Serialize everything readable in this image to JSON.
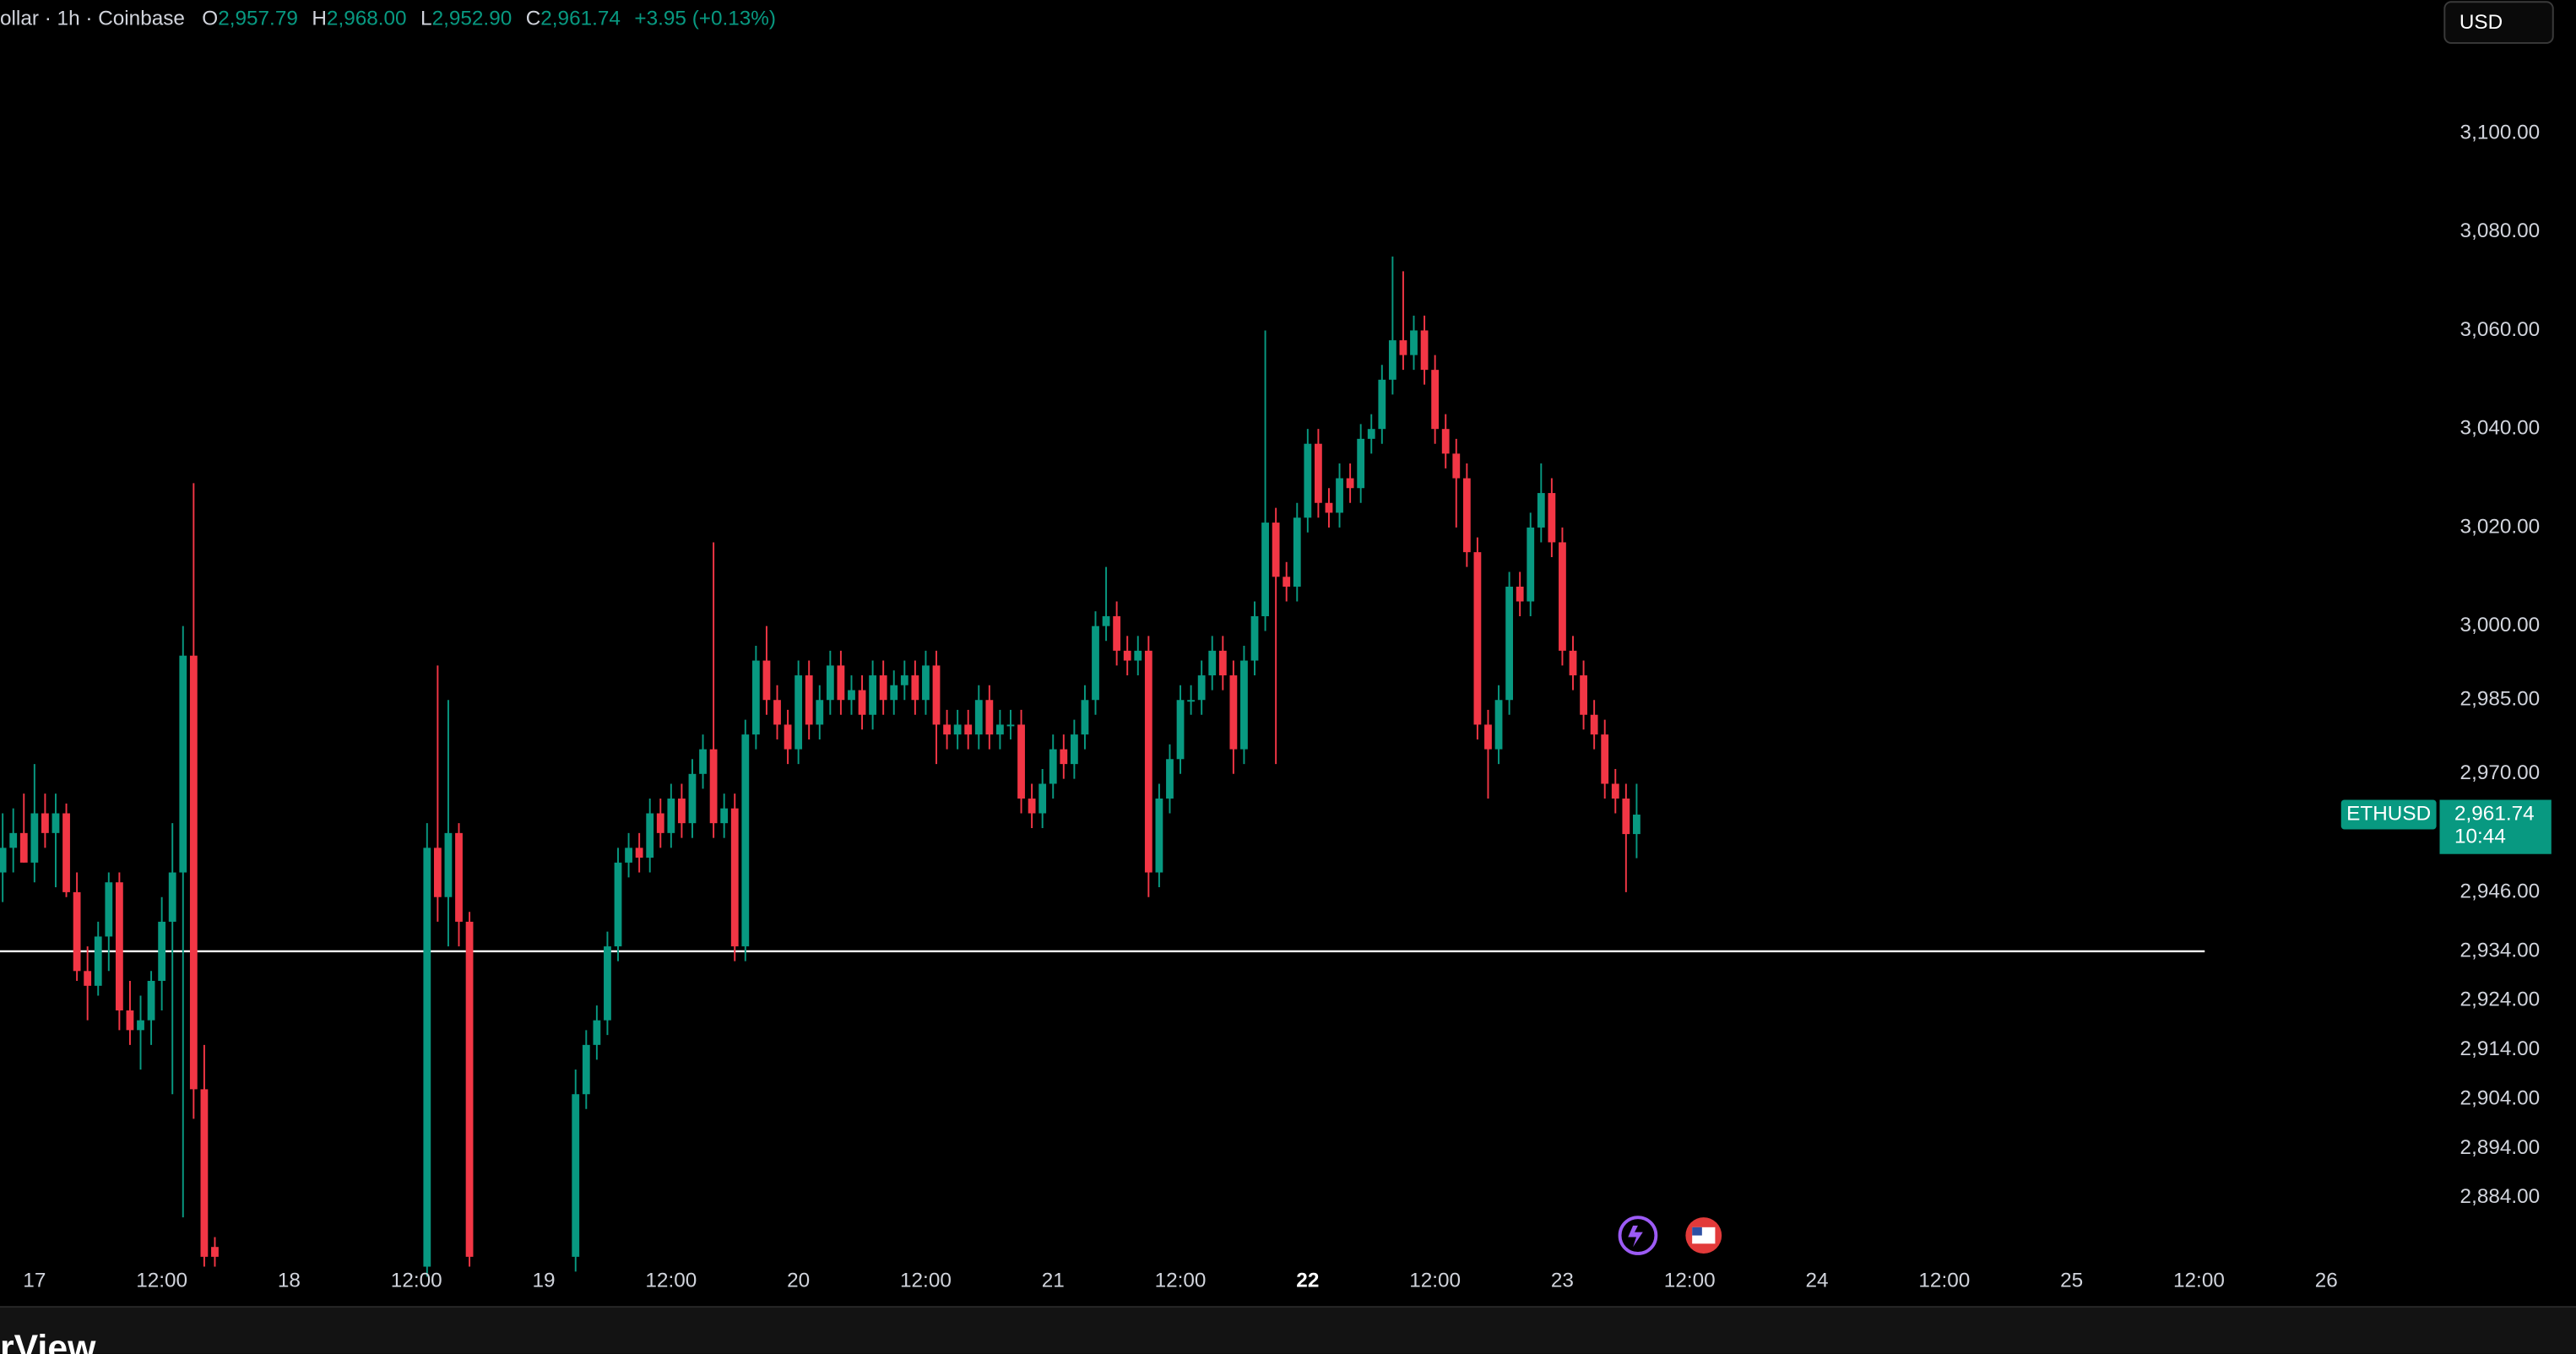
{
  "header": {
    "symbol": "ollar · 1h · Coinbase",
    "o_label": "O",
    "open": "2,957.79",
    "h_label": "H",
    "high": "2,968.00",
    "l_label": "L",
    "low": "2,952.90",
    "c_label": "C",
    "close": "2,961.74",
    "change": "+3.95 (+0.13%)"
  },
  "currency_button": "USD",
  "price_label": {
    "symbol": "ETHUSD",
    "price": "2,961.74",
    "countdown": "10:44"
  },
  "brand": "rView",
  "chart_data": {
    "type": "candlestick",
    "up_color": "#089981",
    "down_color": "#f23645",
    "line_color": "#ffffff",
    "xlim": [
      -3.25,
      225.6
    ],
    "ylim": [
      2872,
      3127
    ],
    "grid": false,
    "horizontal_line": 2934,
    "xticks": [
      {
        "value": 0,
        "label": "17"
      },
      {
        "value": 12,
        "label": "12:00"
      },
      {
        "value": 24,
        "label": "18"
      },
      {
        "value": 36,
        "label": "12:00"
      },
      {
        "value": 48,
        "label": "19"
      },
      {
        "value": 60,
        "label": "12:00"
      },
      {
        "value": 72,
        "label": "20"
      },
      {
        "value": 84,
        "label": "12:00"
      },
      {
        "value": 96,
        "label": "21"
      },
      {
        "value": 108,
        "label": "12:00"
      },
      {
        "value": 120,
        "label": "22"
      },
      {
        "value": 132,
        "label": "12:00"
      },
      {
        "value": 144,
        "label": "23"
      },
      {
        "value": 156,
        "label": "12:00"
      },
      {
        "value": 168,
        "label": "24"
      },
      {
        "value": 180,
        "label": "12:00"
      },
      {
        "value": 192,
        "label": "25"
      },
      {
        "value": 204,
        "label": "12:00"
      },
      {
        "value": 216,
        "label": "26"
      }
    ],
    "yticks": [
      {
        "value": 3100,
        "label": "3,100.00"
      },
      {
        "value": 3080,
        "label": "3,080.00"
      },
      {
        "value": 3060,
        "label": "3,060.00"
      },
      {
        "value": 3040,
        "label": "3,040.00"
      },
      {
        "value": 3020,
        "label": "3,020.00"
      },
      {
        "value": 3000,
        "label": "3,000.00"
      },
      {
        "value": 2985,
        "label": "2,985.00"
      },
      {
        "value": 2970,
        "label": "2,970.00"
      },
      {
        "value": 2946,
        "label": "2,946.00"
      },
      {
        "value": 2934,
        "label": "2,934.00"
      },
      {
        "value": 2924,
        "label": "2,924.00"
      },
      {
        "value": 2914,
        "label": "2,914.00"
      },
      {
        "value": 2904,
        "label": "2,904.00"
      },
      {
        "value": 2894,
        "label": "2,894.00"
      },
      {
        "value": 2884,
        "label": "2,884.00"
      }
    ],
    "x": [
      -3,
      -2,
      -1,
      0,
      1,
      2,
      3,
      4,
      5,
      6,
      7,
      8,
      9,
      10,
      11,
      12,
      13,
      14,
      15,
      16,
      17,
      37,
      38,
      39,
      40,
      41,
      51,
      52,
      53,
      54,
      55,
      56,
      57,
      58,
      59,
      60,
      61,
      62,
      63,
      64,
      65,
      66,
      67,
      68,
      69,
      70,
      71,
      72,
      73,
      74,
      75,
      76,
      77,
      78,
      79,
      80,
      81,
      82,
      83,
      84,
      85,
      86,
      87,
      88,
      89,
      90,
      91,
      92,
      93,
      94,
      95,
      96,
      97,
      98,
      99,
      100,
      101,
      102,
      103,
      104,
      105,
      106,
      107,
      108,
      109,
      110,
      111,
      112,
      113,
      114,
      115,
      116,
      117,
      118,
      119,
      120,
      121,
      122,
      123,
      124,
      125,
      126,
      127,
      128,
      129,
      130,
      131,
      132,
      133,
      134,
      135,
      136,
      137,
      138,
      139,
      140,
      141,
      142,
      143,
      144,
      145,
      146,
      147,
      148,
      149,
      150,
      151
    ],
    "open": [
      2950,
      2955,
      2958,
      2952,
      2962,
      2958,
      2962,
      2946,
      2930,
      2927,
      2937,
      2948,
      2922,
      2918,
      2920,
      2928,
      2940,
      2950,
      2994,
      2906,
      2874,
      2870,
      2955,
      2945,
      2958,
      2940,
      2872,
      2905,
      2915,
      2920,
      2935,
      2952,
      2955,
      2953,
      2962,
      2958,
      2965,
      2960,
      2970,
      2975,
      2960,
      2963,
      2935,
      2978,
      2993,
      2985,
      2980,
      2975,
      2990,
      2980,
      2985,
      2992,
      2985,
      2987,
      2982,
      2990,
      2985,
      2988,
      2990,
      2985,
      2992,
      2980,
      2978,
      2980,
      2978,
      2985,
      2978,
      2980,
      2980,
      2965,
      2962,
      2968,
      2975,
      2972,
      2978,
      2985,
      3000,
      3002,
      2995,
      2993,
      2995,
      2950,
      2965,
      2973,
      2985,
      2985,
      2990,
      2995,
      2990,
      2975,
      2993,
      3002,
      3021,
      3010,
      3008,
      3022,
      3037,
      3025,
      3023,
      3030,
      3028,
      3038,
      3040,
      3050,
      3058,
      3055,
      3060,
      3052,
      3040,
      3035,
      3030,
      3015,
      2980,
      2975,
      2985,
      3008,
      3005,
      3020,
      3027,
      3017,
      2995,
      2990,
      2982,
      2978,
      2968,
      2965,
      2957.79
    ],
    "high": [
      2962,
      2963,
      2966,
      2972,
      2966,
      2966,
      2964,
      2950,
      2935,
      2940,
      2950,
      2950,
      2928,
      2925,
      2930,
      2945,
      2960,
      3000,
      3029,
      2915,
      2876,
      2960,
      2992,
      2985,
      2960,
      2942,
      2910,
      2918,
      2923,
      2938,
      2955,
      2958,
      2958,
      2965,
      2965,
      2968,
      2968,
      2973,
      2978,
      3017,
      2966,
      2966,
      2981,
      2996,
      3000,
      2988,
      2983,
      2993,
      2993,
      2988,
      2995,
      2995,
      2990,
      2990,
      2993,
      2993,
      2991,
      2993,
      2993,
      2995,
      2995,
      2983,
      2983,
      2983,
      2988,
      2988,
      2983,
      2983,
      2983,
      2968,
      2971,
      2978,
      2978,
      2981,
      2988,
      3003,
      3012,
      3005,
      2998,
      2998,
      2998,
      2968,
      2976,
      2988,
      2988,
      2993,
      2998,
      2998,
      2993,
      2996,
      3005,
      3060,
      3024,
      3013,
      3025,
      3040,
      3040,
      3028,
      3033,
      3033,
      3041,
      3043,
      3053,
      3075,
      3072,
      3063,
      3063,
      3055,
      3043,
      3038,
      3033,
      3018,
      2983,
      2988,
      3011,
      3011,
      3023,
      3033,
      3030,
      3020,
      2998,
      2993,
      2985,
      2981,
      2971,
      2968,
      2968
    ],
    "low": [
      2944,
      2950,
      2952,
      2948,
      2955,
      2947,
      2945,
      2928,
      2920,
      2925,
      2930,
      2918,
      2915,
      2910,
      2915,
      2922,
      2905,
      2880,
      2900,
      2870,
      2870,
      2868,
      2940,
      2935,
      2935,
      2870,
      2869,
      2902,
      2912,
      2917,
      2932,
      2949,
      2950,
      2950,
      2955,
      2955,
      2957,
      2957,
      2967,
      2957,
      2957,
      2932,
      2932,
      2975,
      2982,
      2977,
      2972,
      2972,
      2977,
      2977,
      2982,
      2982,
      2982,
      2979,
      2979,
      2982,
      2982,
      2985,
      2982,
      2982,
      2972,
      2975,
      2975,
      2975,
      2975,
      2975,
      2975,
      2977,
      2962,
      2959,
      2959,
      2965,
      2969,
      2969,
      2975,
      2982,
      2997,
      2992,
      2990,
      2990,
      2945,
      2947,
      2962,
      2970,
      2982,
      2982,
      2987,
      2987,
      2970,
      2972,
      2990,
      2999,
      2972,
      3005,
      3005,
      3019,
      3022,
      3020,
      3020,
      3025,
      3025,
      3035,
      3037,
      3047,
      3052,
      3052,
      3049,
      3037,
      3032,
      3020,
      3012,
      2977,
      2965,
      2972,
      2982,
      3002,
      3002,
      3017,
      3014,
      2992,
      2987,
      2979,
      2975,
      2965,
      2962,
      2946,
      2952.9
    ],
    "close": [
      2955,
      2958,
      2952,
      2962,
      2958,
      2962,
      2946,
      2930,
      2927,
      2937,
      2948,
      2922,
      2918,
      2920,
      2928,
      2940,
      2950,
      2994,
      2906,
      2872,
      2872,
      2955,
      2945,
      2958,
      2940,
      2872,
      2905,
      2915,
      2920,
      2935,
      2952,
      2955,
      2953,
      2962,
      2958,
      2965,
      2960,
      2970,
      2975,
      2960,
      2963,
      2935,
      2978,
      2993,
      2985,
      2980,
      2975,
      2990,
      2980,
      2985,
      2992,
      2985,
      2987,
      2982,
      2990,
      2985,
      2988,
      2990,
      2985,
      2992,
      2980,
      2978,
      2980,
      2978,
      2985,
      2978,
      2980,
      2980,
      2965,
      2962,
      2968,
      2975,
      2972,
      2978,
      2985,
      3000,
      3002,
      2995,
      2993,
      2995,
      2950,
      2965,
      2973,
      2985,
      2985,
      2990,
      2995,
      2990,
      2975,
      2993,
      3002,
      3021,
      3010,
      3008,
      3022,
      3037,
      3025,
      3023,
      3030,
      3028,
      3038,
      3040,
      3050,
      3058,
      3055,
      3060,
      3052,
      3040,
      3035,
      3030,
      3015,
      2980,
      2975,
      2985,
      3008,
      3005,
      3020,
      3027,
      3017,
      2995,
      2990,
      2982,
      2978,
      2968,
      2965,
      2957.79,
      2961.74
    ]
  }
}
